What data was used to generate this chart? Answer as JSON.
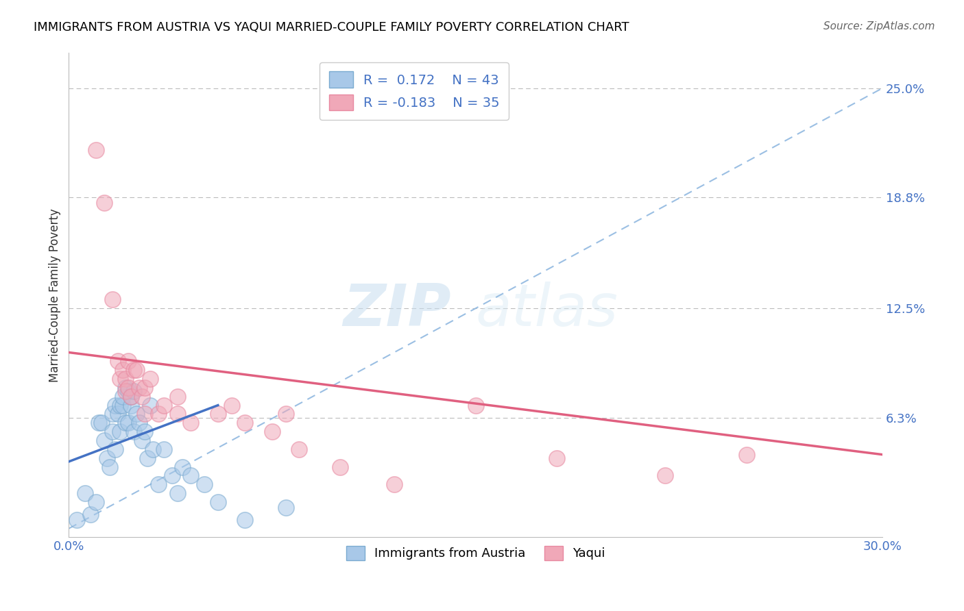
{
  "title": "IMMIGRANTS FROM AUSTRIA VS YAQUI MARRIED-COUPLE FAMILY POVERTY CORRELATION CHART",
  "source": "Source: ZipAtlas.com",
  "ylabel": "Married-Couple Family Poverty",
  "xmin": 0.0,
  "xmax": 0.3,
  "ymin": -0.005,
  "ymax": 0.27,
  "yticks": [
    0.0,
    0.063,
    0.125,
    0.188,
    0.25
  ],
  "ytick_labels": [
    "",
    "6.3%",
    "12.5%",
    "18.8%",
    "25.0%"
  ],
  "xticks": [
    0.0,
    0.075,
    0.15,
    0.225,
    0.3
  ],
  "xtick_labels": [
    "0.0%",
    "",
    "",
    "",
    "30.0%"
  ],
  "legend_r1": "R =  0.172",
  "legend_n1": "N = 43",
  "legend_r2": "R = -0.183",
  "legend_n2": "N = 35",
  "blue_color": "#A8C8E8",
  "pink_color": "#F0A8B8",
  "blue_edge_color": "#7AAAD0",
  "pink_edge_color": "#E888A0",
  "blue_line_color": "#4472C4",
  "pink_line_color": "#E06080",
  "ref_line_color": "#90B8E0",
  "watermark_zip": "ZIP",
  "watermark_atlas": "atlas",
  "blue_x": [
    0.003,
    0.006,
    0.008,
    0.01,
    0.011,
    0.012,
    0.013,
    0.014,
    0.015,
    0.016,
    0.016,
    0.017,
    0.017,
    0.018,
    0.019,
    0.019,
    0.02,
    0.02,
    0.021,
    0.021,
    0.022,
    0.022,
    0.023,
    0.023,
    0.024,
    0.024,
    0.025,
    0.026,
    0.027,
    0.028,
    0.029,
    0.03,
    0.031,
    0.033,
    0.035,
    0.038,
    0.04,
    0.042,
    0.045,
    0.05,
    0.055,
    0.065,
    0.08
  ],
  "blue_y": [
    0.005,
    0.02,
    0.008,
    0.015,
    0.06,
    0.06,
    0.05,
    0.04,
    0.035,
    0.055,
    0.065,
    0.045,
    0.07,
    0.065,
    0.055,
    0.07,
    0.07,
    0.075,
    0.06,
    0.08,
    0.06,
    0.078,
    0.07,
    0.075,
    0.055,
    0.078,
    0.065,
    0.06,
    0.05,
    0.055,
    0.04,
    0.07,
    0.045,
    0.025,
    0.045,
    0.03,
    0.02,
    0.035,
    0.03,
    0.025,
    0.015,
    0.005,
    0.012
  ],
  "pink_x": [
    0.01,
    0.013,
    0.016,
    0.018,
    0.019,
    0.02,
    0.021,
    0.021,
    0.022,
    0.022,
    0.023,
    0.024,
    0.025,
    0.026,
    0.027,
    0.028,
    0.028,
    0.03,
    0.033,
    0.035,
    0.04,
    0.04,
    0.045,
    0.055,
    0.06,
    0.065,
    0.075,
    0.08,
    0.085,
    0.1,
    0.12,
    0.15,
    0.18,
    0.22,
    0.25
  ],
  "pink_y": [
    0.215,
    0.185,
    0.13,
    0.095,
    0.085,
    0.09,
    0.085,
    0.078,
    0.095,
    0.08,
    0.075,
    0.09,
    0.09,
    0.08,
    0.075,
    0.065,
    0.08,
    0.085,
    0.065,
    0.07,
    0.065,
    0.075,
    0.06,
    0.065,
    0.07,
    0.06,
    0.055,
    0.065,
    0.045,
    0.035,
    0.025,
    0.07,
    0.04,
    0.03,
    0.042
  ],
  "blue_trend_x": [
    0.0,
    0.055
  ],
  "blue_trend_y": [
    0.038,
    0.07
  ],
  "pink_trend_x": [
    0.0,
    0.3
  ],
  "pink_trend_y": [
    0.1,
    0.042
  ],
  "ref_line_x": [
    0.0,
    0.3
  ],
  "ref_line_y": [
    0.0,
    0.25
  ]
}
